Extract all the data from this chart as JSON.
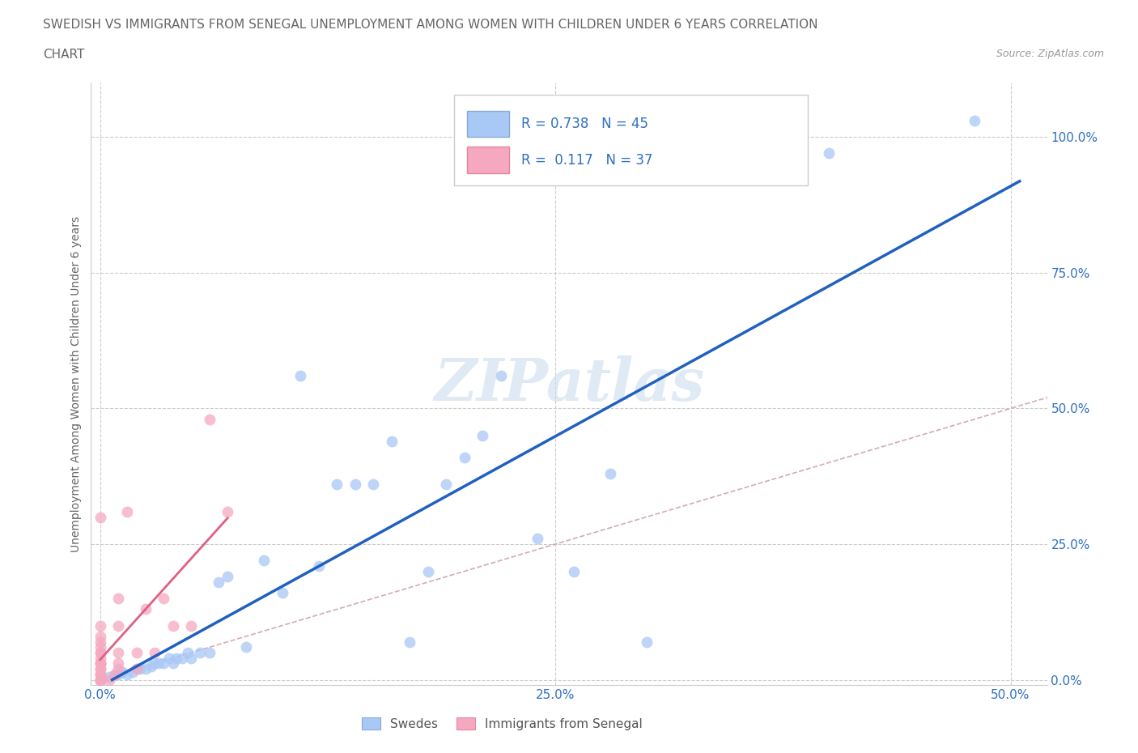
{
  "title_line1": "SWEDISH VS IMMIGRANTS FROM SENEGAL UNEMPLOYMENT AMONG WOMEN WITH CHILDREN UNDER 6 YEARS CORRELATION",
  "title_line2": "CHART",
  "source": "Source: ZipAtlas.com",
  "ylabel": "Unemployment Among Women with Children Under 6 years",
  "xlim": [
    -0.005,
    0.52
  ],
  "ylim": [
    -0.01,
    1.1
  ],
  "xtick_labels": [
    "0.0%",
    "25.0%",
    "50.0%"
  ],
  "xtick_vals": [
    0.0,
    0.25,
    0.5
  ],
  "ytick_labels": [
    "0.0%",
    "25.0%",
    "50.0%",
    "75.0%",
    "100.0%"
  ],
  "ytick_vals": [
    0.0,
    0.25,
    0.5,
    0.75,
    1.0
  ],
  "watermark": "ZIPatlas",
  "legend_R_swedes": "0.738",
  "legend_N_swedes": "45",
  "legend_R_immigrants": "0.117",
  "legend_N_immigrants": "37",
  "swedes_color": "#a8c8f5",
  "immigrants_color": "#f5a8c0",
  "trendline_swedes_color": "#2060c0",
  "trendline_immigrants_color": "#e06080",
  "diagonal_color": "#d0a0b0",
  "swedes_x": [
    0.0,
    0.005,
    0.008,
    0.01,
    0.012,
    0.015,
    0.018,
    0.02,
    0.022,
    0.025,
    0.028,
    0.03,
    0.032,
    0.035,
    0.038,
    0.04,
    0.042,
    0.045,
    0.048,
    0.05,
    0.055,
    0.06,
    0.065,
    0.07,
    0.08,
    0.09,
    0.1,
    0.11,
    0.12,
    0.13,
    0.14,
    0.15,
    0.16,
    0.17,
    0.18,
    0.19,
    0.2,
    0.21,
    0.22,
    0.24,
    0.26,
    0.28,
    0.3,
    0.4,
    0.48
  ],
  "swedes_y": [
    0.0,
    0.005,
    0.01,
    0.01,
    0.015,
    0.01,
    0.015,
    0.02,
    0.02,
    0.02,
    0.025,
    0.03,
    0.03,
    0.03,
    0.04,
    0.03,
    0.04,
    0.04,
    0.05,
    0.04,
    0.05,
    0.05,
    0.18,
    0.19,
    0.06,
    0.22,
    0.16,
    0.56,
    0.21,
    0.36,
    0.36,
    0.36,
    0.44,
    0.07,
    0.2,
    0.36,
    0.41,
    0.45,
    0.56,
    0.26,
    0.2,
    0.38,
    0.07,
    0.97,
    1.03
  ],
  "immigrants_x": [
    0.0,
    0.0,
    0.0,
    0.0,
    0.0,
    0.0,
    0.0,
    0.0,
    0.0,
    0.0,
    0.0,
    0.0,
    0.0,
    0.0,
    0.0,
    0.0,
    0.0,
    0.0,
    0.0,
    0.0,
    0.005,
    0.008,
    0.01,
    0.01,
    0.01,
    0.01,
    0.01,
    0.015,
    0.02,
    0.02,
    0.025,
    0.03,
    0.035,
    0.04,
    0.05,
    0.06,
    0.07
  ],
  "immigrants_y": [
    0.0,
    0.0,
    0.0,
    0.0,
    0.01,
    0.01,
    0.01,
    0.02,
    0.02,
    0.03,
    0.03,
    0.03,
    0.04,
    0.05,
    0.05,
    0.06,
    0.07,
    0.08,
    0.1,
    0.3,
    0.0,
    0.01,
    0.02,
    0.03,
    0.05,
    0.1,
    0.15,
    0.31,
    0.02,
    0.05,
    0.13,
    0.05,
    0.15,
    0.1,
    0.1,
    0.48,
    0.31
  ]
}
